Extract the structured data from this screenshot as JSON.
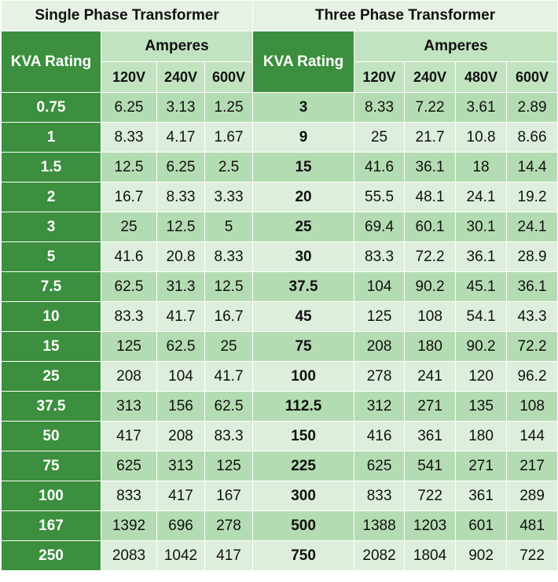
{
  "headers": {
    "single_title": "Single Phase Transformer",
    "three_title": "Three Phase Transformer",
    "kva_rating": "KVA Rating",
    "amperes": "Amperes",
    "single_voltages": [
      "120V",
      "240V",
      "600V"
    ],
    "three_voltages": [
      "120V",
      "240V",
      "480V",
      "600V"
    ]
  },
  "colors": {
    "dark_green": "#3b8f3e",
    "mid_green": "#b4dcb2",
    "light_green": "#ddefdc",
    "header_green": "#c2e3c0"
  },
  "rows": [
    {
      "single": [
        "0.75",
        "6.25",
        "3.13",
        "1.25"
      ],
      "three": [
        "3",
        "8.33",
        "7.22",
        "3.61",
        "2.89"
      ]
    },
    {
      "single": [
        "1",
        "8.33",
        "4.17",
        "1.67"
      ],
      "three": [
        "9",
        "25",
        "21.7",
        "10.8",
        "8.66"
      ]
    },
    {
      "single": [
        "1.5",
        "12.5",
        "6.25",
        "2.5"
      ],
      "three": [
        "15",
        "41.6",
        "36.1",
        "18",
        "14.4"
      ]
    },
    {
      "single": [
        "2",
        "16.7",
        "8.33",
        "3.33"
      ],
      "three": [
        "20",
        "55.5",
        "48.1",
        "24.1",
        "19.2"
      ]
    },
    {
      "single": [
        "3",
        "25",
        "12.5",
        "5"
      ],
      "three": [
        "25",
        "69.4",
        "60.1",
        "30.1",
        "24.1"
      ]
    },
    {
      "single": [
        "5",
        "41.6",
        "20.8",
        "8.33"
      ],
      "three": [
        "30",
        "83.3",
        "72.2",
        "36.1",
        "28.9"
      ]
    },
    {
      "single": [
        "7.5",
        "62.5",
        "31.3",
        "12.5"
      ],
      "three": [
        "37.5",
        "104",
        "90.2",
        "45.1",
        "36.1"
      ]
    },
    {
      "single": [
        "10",
        "83.3",
        "41.7",
        "16.7"
      ],
      "three": [
        "45",
        "125",
        "108",
        "54.1",
        "43.3"
      ]
    },
    {
      "single": [
        "15",
        "125",
        "62.5",
        "25"
      ],
      "three": [
        "75",
        "208",
        "180",
        "90.2",
        "72.2"
      ]
    },
    {
      "single": [
        "25",
        "208",
        "104",
        "41.7"
      ],
      "three": [
        "100",
        "278",
        "241",
        "120",
        "96.2"
      ]
    },
    {
      "single": [
        "37.5",
        "313",
        "156",
        "62.5"
      ],
      "three": [
        "112.5",
        "312",
        "271",
        "135",
        "108"
      ]
    },
    {
      "single": [
        "50",
        "417",
        "208",
        "83.3"
      ],
      "three": [
        "150",
        "416",
        "361",
        "180",
        "144"
      ]
    },
    {
      "single": [
        "75",
        "625",
        "313",
        "125"
      ],
      "three": [
        "225",
        "625",
        "541",
        "271",
        "217"
      ]
    },
    {
      "single": [
        "100",
        "833",
        "417",
        "167"
      ],
      "three": [
        "300",
        "833",
        "722",
        "361",
        "289"
      ]
    },
    {
      "single": [
        "167",
        "1392",
        "696",
        "278"
      ],
      "three": [
        "500",
        "1388",
        "1203",
        "601",
        "481"
      ]
    },
    {
      "single": [
        "250",
        "2083",
        "1042",
        "417"
      ],
      "three": [
        "750",
        "2082",
        "1804",
        "902",
        "722"
      ]
    }
  ]
}
